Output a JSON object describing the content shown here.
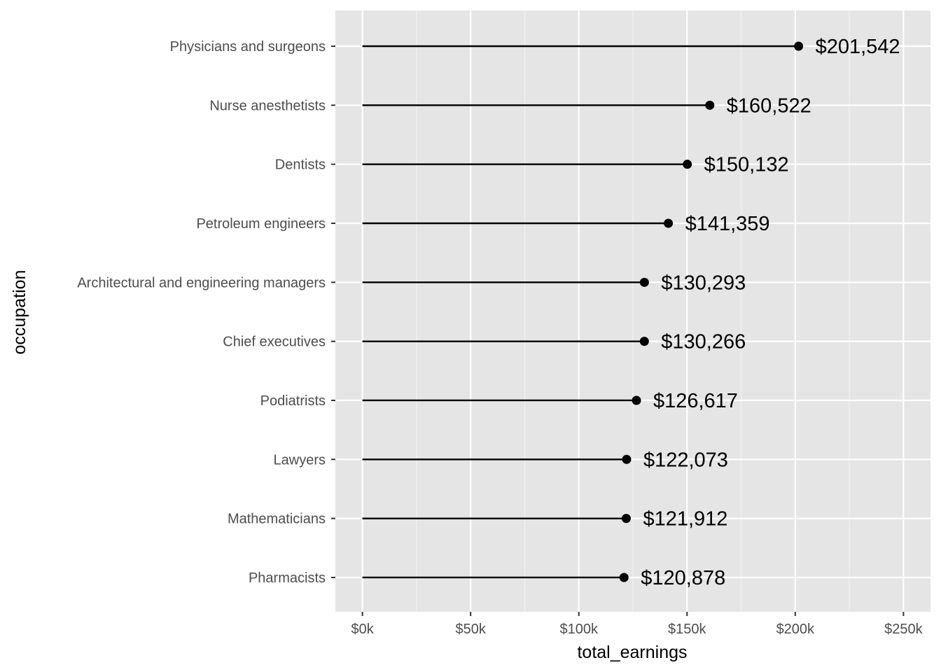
{
  "chart_data": {
    "type": "lollipop",
    "orientation": "horizontal",
    "title": "",
    "xlabel": "total_earnings",
    "ylabel": "occupation",
    "xlim": [
      -12500,
      262500
    ],
    "x_ticks": [
      0,
      50000,
      100000,
      150000,
      200000,
      250000
    ],
    "x_tick_labels": [
      "$0k",
      "$50k",
      "$100k",
      "$150k",
      "$200k",
      "$250k"
    ],
    "categories": [
      "Physicians and surgeons",
      "Nurse anesthetists",
      "Dentists",
      "Petroleum engineers",
      "Architectural and engineering managers",
      "Chief executives",
      "Podiatrists",
      "Lawyers",
      "Mathematicians",
      "Pharmacists"
    ],
    "values": [
      201542,
      160522,
      150132,
      141359,
      130293,
      130266,
      126617,
      122073,
      121912,
      120878
    ],
    "data_labels": [
      "$201,542",
      "$160,522",
      "$150,132",
      "$141,359",
      "$130,293",
      "$130,266",
      "$126,617",
      "$122,073",
      "$121,912",
      "$120,878"
    ],
    "grid": true,
    "legend": "none",
    "colors": {
      "panel_background": "#e5e5e5",
      "grid_major": "#ffffff",
      "grid_minor": "#f2f2f2",
      "tick_label": "#4d4d4d",
      "tick_mark": "#333333",
      "mark": "#000000"
    }
  }
}
